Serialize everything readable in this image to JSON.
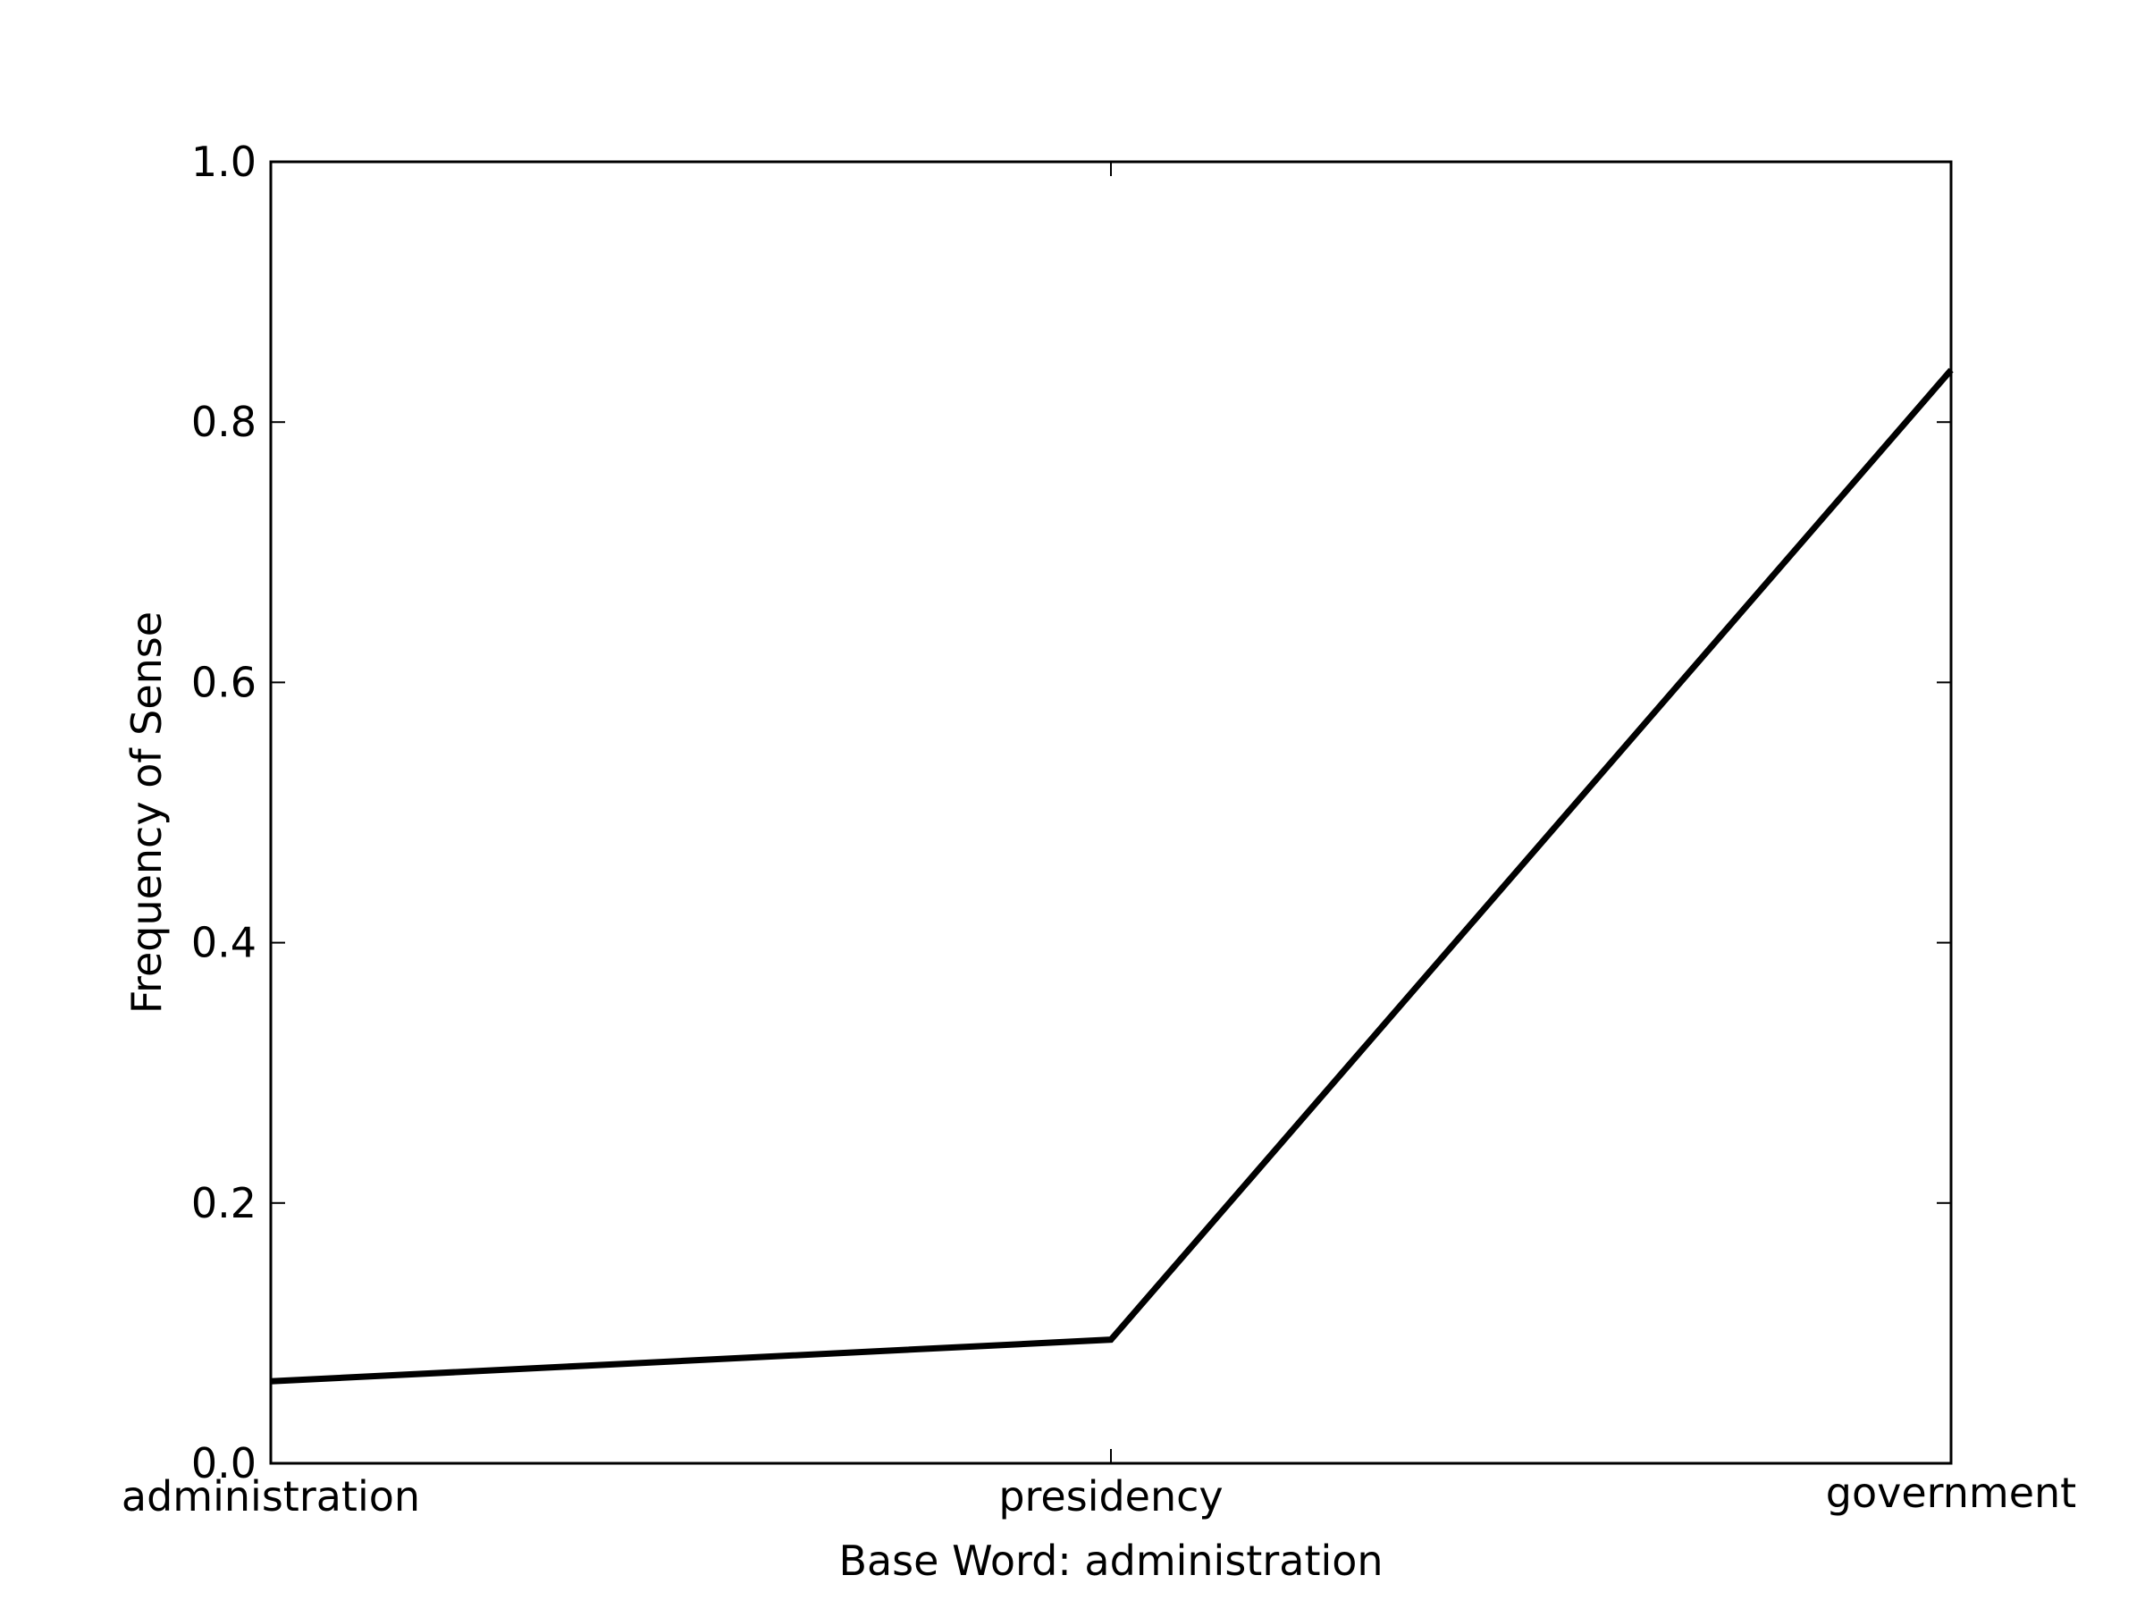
{
  "chart_data": {
    "type": "line",
    "categories": [
      "administration",
      "presidency",
      "government"
    ],
    "series": [
      {
        "values": [
          0.063,
          0.095,
          0.84
        ],
        "color": "#000000"
      }
    ],
    "xlabel": "Base Word: administration",
    "ylabel": "Frequency of Sense",
    "ylim": [
      0.0,
      1.0
    ],
    "yticks": [
      {
        "value": 0.0,
        "label": "0.0"
      },
      {
        "value": 0.2,
        "label": "0.2"
      },
      {
        "value": 0.4,
        "label": "0.4"
      },
      {
        "value": 0.6,
        "label": "0.6"
      },
      {
        "value": 0.8,
        "label": "0.8"
      },
      {
        "value": 1.0,
        "label": "1.0"
      }
    ],
    "grid": false,
    "legend": "none"
  }
}
